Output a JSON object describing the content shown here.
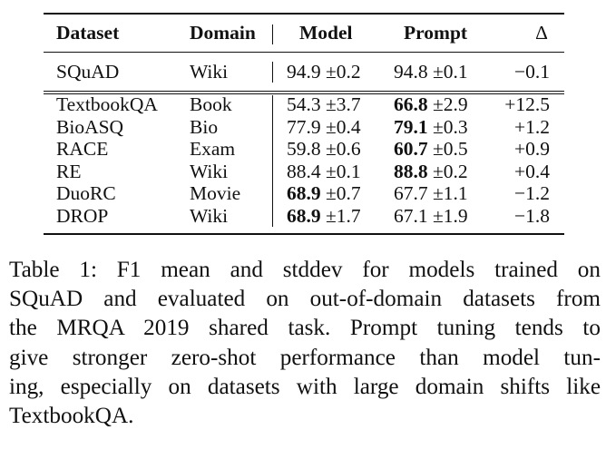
{
  "table": {
    "headers": {
      "dataset": "Dataset",
      "domain": "Domain",
      "model": "Model",
      "prompt": "Prompt",
      "delta": "Δ"
    },
    "in_domain": [
      {
        "dataset": "SQuAD",
        "domain": "Wiki",
        "model_mean": "94.9",
        "model_std": "±0.2",
        "prompt_mean": "94.8",
        "prompt_std": "±0.1",
        "delta": "−0.1"
      }
    ],
    "out_of_domain": [
      {
        "dataset": "TextbookQA",
        "domain": "Book",
        "model_mean": "54.3",
        "model_std": "±3.7",
        "prompt_mean": "66.8",
        "prompt_std": "±2.9",
        "delta": "+12.5",
        "bold": "prompt"
      },
      {
        "dataset": "BioASQ",
        "domain": "Bio",
        "model_mean": "77.9",
        "model_std": "±0.4",
        "prompt_mean": "79.1",
        "prompt_std": "±0.3",
        "delta": "+1.2",
        "bold": "prompt"
      },
      {
        "dataset": "RACE",
        "domain": "Exam",
        "model_mean": "59.8",
        "model_std": "±0.6",
        "prompt_mean": "60.7",
        "prompt_std": "±0.5",
        "delta": "+0.9",
        "bold": "prompt"
      },
      {
        "dataset": "RE",
        "domain": "Wiki",
        "model_mean": "88.4",
        "model_std": "±0.1",
        "prompt_mean": "88.8",
        "prompt_std": "±0.2",
        "delta": "+0.4",
        "bold": "prompt"
      },
      {
        "dataset": "DuoRC",
        "domain": "Movie",
        "model_mean": "68.9",
        "model_std": "±0.7",
        "prompt_mean": "67.7",
        "prompt_std": "±1.1",
        "delta": "−1.2",
        "bold": "model"
      },
      {
        "dataset": "DROP",
        "domain": "Wiki",
        "model_mean": "68.9",
        "model_std": "±1.7",
        "prompt_mean": "67.1",
        "prompt_std": "±1.9",
        "delta": "−1.8",
        "bold": "model"
      }
    ]
  },
  "caption": {
    "lines": [
      "Table 1: F1 mean and stddev for models trained on",
      "SQuAD and evaluated on out-of-domain datasets from",
      "the MRQA 2019 shared task. Prompt tuning tends to",
      "give stronger zero-shot performance than model tun-",
      "ing, especially on datasets with large domain shifts like",
      "TextbookQA."
    ]
  }
}
